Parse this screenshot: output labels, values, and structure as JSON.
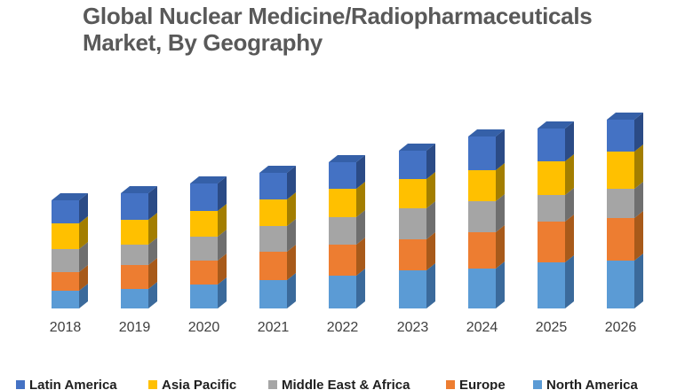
{
  "title": "Global Nuclear Medicine/Radiopharmaceuticals Market, By Geography",
  "chart_data": {
    "type": "bar",
    "variant": "stacked-column-3d",
    "title": "Global Nuclear Medicine/Radiopharmaceuticals Market, By Geography",
    "categories": [
      "2018",
      "2019",
      "2020",
      "2021",
      "2022",
      "2023",
      "2024",
      "2025",
      "2026"
    ],
    "stack_order": "bottom-to-top",
    "series": [
      {
        "name": "North America",
        "color": "#5B9BD5",
        "side_color": "#3B6A9B",
        "top_color": "#4A7FB5",
        "values": [
          20,
          22,
          27,
          32,
          37,
          43,
          45,
          52,
          54
        ]
      },
      {
        "name": "Europe",
        "color": "#ED7D31",
        "side_color": "#A85A1A",
        "top_color": "#C56826",
        "values": [
          21,
          27,
          27,
          32,
          35,
          35,
          41,
          46,
          48
        ]
      },
      {
        "name": "Middle East & Africa",
        "color": "#A5A5A5",
        "side_color": "#6F6F6F",
        "top_color": "#8A8A8A",
        "values": [
          26,
          23,
          27,
          29,
          31,
          35,
          35,
          30,
          33
        ]
      },
      {
        "name": "Asia Pacific",
        "color": "#FFC000",
        "side_color": "#A37E00",
        "top_color": "#D1A000",
        "values": [
          29,
          28,
          29,
          30,
          32,
          33,
          35,
          38,
          42
        ]
      },
      {
        "name": "Latin America",
        "color": "#4472C4",
        "side_color": "#2B4B86",
        "top_color": "#3560A8",
        "values": [
          26,
          30,
          31,
          30,
          30,
          32,
          38,
          37,
          36
        ]
      }
    ],
    "value_axis": {
      "visible": false,
      "note": "no value axis or gridlines shown; values are relative height units"
    },
    "x_axis": {
      "labels": [
        "2018",
        "2019",
        "2020",
        "2021",
        "2022",
        "2023",
        "2024",
        "2025",
        "2026"
      ],
      "color": "#3F3F3F"
    },
    "legend": {
      "position": "bottom",
      "entries": [
        {
          "label": "Latin America",
          "color": "#4472C4"
        },
        {
          "label": "Asia Pacific",
          "color": "#FFC000"
        },
        {
          "label": "Middle East & Africa",
          "color": "#A5A5A5"
        },
        {
          "label": "Europe",
          "color": "#ED7D31"
        },
        {
          "label": "North America",
          "color": "#5B9BD5"
        }
      ]
    },
    "colors": {
      "title_text": "#595959",
      "axis_text": "#3F3F3F",
      "legend_text": "#1F1F1F",
      "background": "#FFFFFF"
    }
  }
}
